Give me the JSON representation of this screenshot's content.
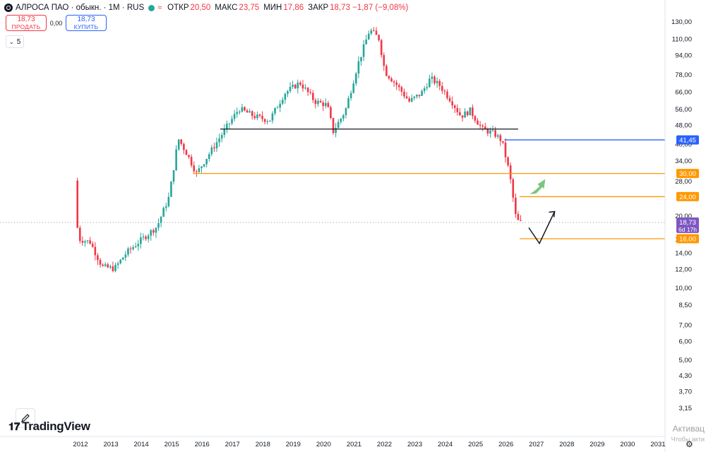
{
  "header": {
    "symbol": "АЛРОСА ПАО · обыкн. · 1М · RUS",
    "status_icon": "market-open-dot",
    "wave_icon": "≈",
    "open_label": "ОТКР",
    "open_value": "20,50",
    "high_label": "МАКС",
    "high_value": "23,75",
    "low_label": "МИН",
    "low_value": "17,86",
    "close_label": "ЗАКР",
    "close_value": "18,73 −1,87 (−9,08%)"
  },
  "trade": {
    "sell_price": "18,73",
    "sell_label": "ПРОДАТЬ",
    "spread": "0,00",
    "buy_price": "18,73",
    "buy_label": "КУПИТЬ"
  },
  "indicators_toggle": {
    "chevron": "⌄",
    "count": "5"
  },
  "branding": {
    "logo_mark": "𝟏𝟕",
    "logo_text": "TradingView"
  },
  "watermark": {
    "line1": "Активац",
    "line2": "Чтобы акти"
  },
  "colors": {
    "up": "#26a69a",
    "down": "#f23645",
    "orange": "#ff9800",
    "blue": "#2962ff",
    "black": "#131722",
    "purple": "#7e57c2",
    "green_arrow": "#66bb6a"
  },
  "chart_data": {
    "type": "candlestick",
    "scale": "log",
    "interval": "1M",
    "x_tick_labels": [
      "2012",
      "2013",
      "2014",
      "2015",
      "2016",
      "2017",
      "2018",
      "2019",
      "2020",
      "2021",
      "2022",
      "2023",
      "2024",
      "2025",
      "2026",
      "2027",
      "2028",
      "2029",
      "2030",
      "2031"
    ],
    "y_tick_labels": [
      130,
      110,
      94,
      78,
      66,
      56,
      48,
      40,
      34,
      28,
      20,
      16,
      14,
      12,
      10,
      8.5,
      7,
      6,
      5,
      4.3,
      3.7,
      3.15
    ],
    "y_tick_text": [
      "130,00",
      "110,00",
      "94,00",
      "78,00",
      "66,00",
      "56,00",
      "48,00",
      "40,00",
      "34,00",
      "28,00",
      "20,00",
      "16,00",
      "14,00",
      "12,00",
      "10,00",
      "8,50",
      "7,00",
      "6,00",
      "5,00",
      "4,30",
      "3,70",
      "3,15"
    ],
    "price_markers": [
      {
        "value": 41.45,
        "text": "41,45",
        "color": "#2962ff"
      },
      {
        "value": 30.0,
        "text": "30,00",
        "color": "#ff9800"
      },
      {
        "value": 24.0,
        "text": "24,00",
        "color": "#ff9800"
      },
      {
        "value": 18.73,
        "text": "18,73",
        "sub": "6d 17h",
        "color": "#7e57c2"
      },
      {
        "value": 16.0,
        "text": "16,00",
        "color": "#ff9800"
      }
    ],
    "levels": [
      {
        "price": 46.0,
        "from": 2016.6,
        "to": 2026.4,
        "color": "#131722"
      },
      {
        "price": 41.45,
        "from": 2025.95,
        "to": 2031.6,
        "color": "#2962ff"
      },
      {
        "price": 30.0,
        "from": 2015.7,
        "to": 2031.6,
        "color": "#ff9800"
      },
      {
        "price": 24.0,
        "from": 2026.45,
        "to": 2031.6,
        "color": "#ff9800"
      },
      {
        "price": 16.0,
        "from": 2026.45,
        "to": 2031.6,
        "color": "#ff9800"
      }
    ],
    "anchors": [
      [
        2011.9,
        28
      ],
      [
        2011.95,
        22
      ],
      [
        2012.0,
        16
      ],
      [
        2012.4,
        15.5
      ],
      [
        2012.8,
        12.2
      ],
      [
        2013.2,
        12.0
      ],
      [
        2013.6,
        14
      ],
      [
        2014.0,
        15.5
      ],
      [
        2014.6,
        18
      ],
      [
        2015.0,
        24
      ],
      [
        2015.3,
        42
      ],
      [
        2015.6,
        36
      ],
      [
        2015.9,
        30
      ],
      [
        2016.3,
        36
      ],
      [
        2016.8,
        45
      ],
      [
        2017.3,
        56
      ],
      [
        2017.8,
        52
      ],
      [
        2018.3,
        50
      ],
      [
        2018.8,
        65
      ],
      [
        2019.3,
        72
      ],
      [
        2019.8,
        60
      ],
      [
        2020.2,
        58
      ],
      [
        2020.4,
        45
      ],
      [
        2020.8,
        55
      ],
      [
        2021.2,
        85
      ],
      [
        2021.6,
        120
      ],
      [
        2021.9,
        110
      ],
      [
        2022.1,
        80
      ],
      [
        2022.5,
        70
      ],
      [
        2022.9,
        60
      ],
      [
        2023.3,
        65
      ],
      [
        2023.6,
        75
      ],
      [
        2023.9,
        70
      ],
      [
        2024.3,
        60
      ],
      [
        2024.6,
        52
      ],
      [
        2024.9,
        55
      ],
      [
        2025.3,
        46
      ],
      [
        2025.7,
        44
      ],
      [
        2025.95,
        41
      ],
      [
        2026.2,
        30
      ],
      [
        2026.4,
        20
      ],
      [
        2026.5,
        18.73
      ]
    ],
    "drawings": [
      {
        "type": "arrow-up",
        "color": "#66bb6a",
        "from": [
          2026.85,
          24.9
        ],
        "to": [
          2027.2,
          28
        ]
      },
      {
        "type": "polyline-arrow",
        "color": "#131722",
        "points": [
          [
            2026.75,
            17.8
          ],
          [
            2027.1,
            15.3
          ],
          [
            2027.6,
            20.8
          ]
        ]
      }
    ]
  }
}
